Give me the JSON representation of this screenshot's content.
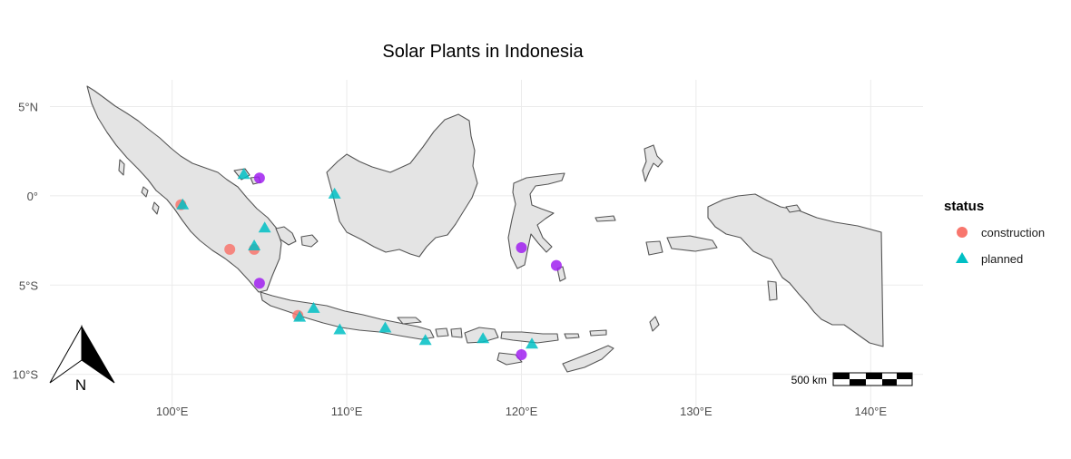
{
  "title": "Solar Plants in Indonesia",
  "x_ticks": [
    {
      "value": 100,
      "label": "100°E"
    },
    {
      "value": 110,
      "label": "110°E"
    },
    {
      "value": 120,
      "label": "120°E"
    },
    {
      "value": 130,
      "label": "130°E"
    },
    {
      "value": 140,
      "label": "140°E"
    }
  ],
  "y_ticks": [
    {
      "value": 5,
      "label": "5°N"
    },
    {
      "value": 0,
      "label": "0°"
    },
    {
      "value": -5,
      "label": "5°S"
    },
    {
      "value": -10,
      "label": "10°S"
    }
  ],
  "legend": {
    "title": "status",
    "position": "right",
    "items": [
      {
        "key": "construction",
        "label": "construction",
        "color": "#F8766D",
        "shape": "circle"
      },
      {
        "key": "planned",
        "label": "planned",
        "color": "#00BFC4",
        "shape": "triangle"
      }
    ]
  },
  "scale_bar": {
    "label": "500 km"
  },
  "north_arrow": {
    "label": "N"
  },
  "colors": {
    "land": "#e4e4e4",
    "outline": "#555555",
    "construction": "#F8766D",
    "planned": "#00BFC4",
    "other": "#A020F0"
  },
  "chart_data": {
    "type": "scatter",
    "title": "Solar Plants in Indonesia",
    "xlim": [
      93,
      143
    ],
    "ylim": [
      -12,
      6.5
    ],
    "grid": true,
    "legend_position": "right",
    "series": [
      {
        "name": "construction",
        "color": "#F8766D",
        "shape": "circle",
        "points": [
          {
            "lon": 100.5,
            "lat": -0.5
          },
          {
            "lon": 103.3,
            "lat": -3.0
          },
          {
            "lon": 104.7,
            "lat": -3.0
          },
          {
            "lon": 107.2,
            "lat": -6.7
          }
        ]
      },
      {
        "name": "planned",
        "color": "#00BFC4",
        "shape": "triangle",
        "points": [
          {
            "lon": 100.6,
            "lat": -0.5
          },
          {
            "lon": 104.1,
            "lat": 1.2
          },
          {
            "lon": 104.7,
            "lat": -2.8
          },
          {
            "lon": 105.3,
            "lat": -1.8
          },
          {
            "lon": 109.3,
            "lat": 0.1
          },
          {
            "lon": 107.3,
            "lat": -6.8
          },
          {
            "lon": 108.1,
            "lat": -6.3
          },
          {
            "lon": 109.6,
            "lat": -7.5
          },
          {
            "lon": 112.2,
            "lat": -7.4
          },
          {
            "lon": 114.5,
            "lat": -8.1
          },
          {
            "lon": 117.8,
            "lat": -8.0
          },
          {
            "lon": 120.6,
            "lat": -8.3
          }
        ]
      },
      {
        "color": "#A020F0",
        "shape": "circle",
        "points": [
          {
            "lon": 105.0,
            "lat": 1.0
          },
          {
            "lon": 105.0,
            "lat": -4.9
          },
          {
            "lon": 120.0,
            "lat": -2.9
          },
          {
            "lon": 122.0,
            "lat": -3.9
          },
          {
            "lon": 120.0,
            "lat": -8.9
          }
        ]
      }
    ]
  }
}
